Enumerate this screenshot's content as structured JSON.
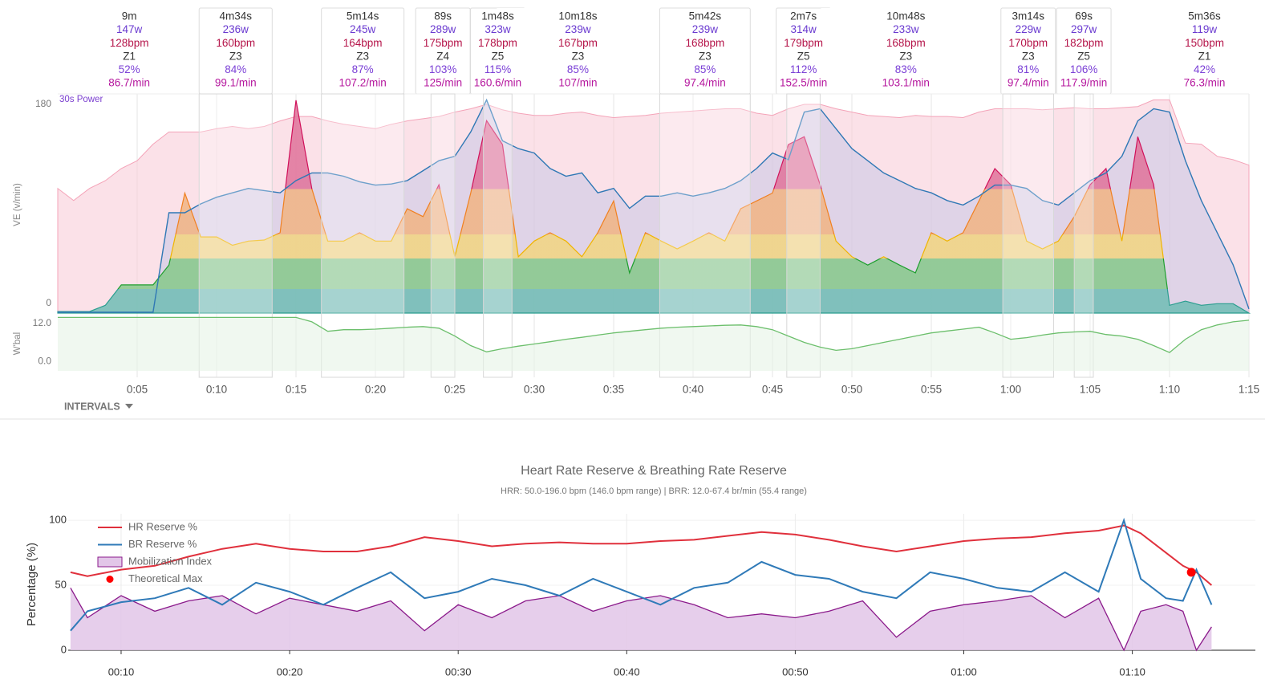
{
  "intervals": [
    {
      "duration": "9m",
      "power": "147w",
      "heart_rate": "128bpm",
      "zone": "Z1",
      "percent": "52%",
      "ve": "86.7/min",
      "start": 0,
      "end": 9,
      "boxed": false
    },
    {
      "duration": "4m34s",
      "power": "236w",
      "heart_rate": "160bpm",
      "zone": "Z3",
      "percent": "84%",
      "ve": "99.1/min",
      "start": 8.9,
      "end": 13.5,
      "boxed": true
    },
    {
      "duration": "5m14s",
      "power": "245w",
      "heart_rate": "164bpm",
      "zone": "Z3",
      "percent": "87%",
      "ve": "107.2/min",
      "start": 16.6,
      "end": 21.8,
      "boxed": true
    },
    {
      "duration": "89s",
      "power": "289w",
      "heart_rate": "175bpm",
      "zone": "Z4",
      "percent": "103%",
      "ve": "125/min",
      "start": 23.5,
      "end": 25.0,
      "boxed": true
    },
    {
      "duration": "1m48s",
      "power": "323w",
      "heart_rate": "178bpm",
      "zone": "Z5",
      "percent": "115%",
      "ve": "160.6/min",
      "start": 26.8,
      "end": 28.6,
      "boxed": true
    },
    {
      "duration": "10m18s",
      "power": "239w",
      "heart_rate": "167bpm",
      "zone": "Z3",
      "percent": "85%",
      "ve": "107/min",
      "start": 27.6,
      "end": 37.9,
      "boxed": false
    },
    {
      "duration": "5m42s",
      "power": "239w",
      "heart_rate": "168bpm",
      "zone": "Z3",
      "percent": "85%",
      "ve": "97.4/min",
      "start": 37.9,
      "end": 43.6,
      "boxed": true
    },
    {
      "duration": "2m7s",
      "power": "314w",
      "heart_rate": "179bpm",
      "zone": "Z5",
      "percent": "112%",
      "ve": "152.5/min",
      "start": 45.9,
      "end": 48.0,
      "boxed": true
    },
    {
      "duration": "10m48s",
      "power": "233w",
      "heart_rate": "168bpm",
      "zone": "Z3",
      "percent": "83%",
      "ve": "103.1/min",
      "start": 48.0,
      "end": 58.8,
      "boxed": false
    },
    {
      "duration": "3m14s",
      "power": "229w",
      "heart_rate": "170bpm",
      "zone": "Z3",
      "percent": "81%",
      "ve": "97.4/min",
      "start": 59.5,
      "end": 62.7,
      "boxed": true
    },
    {
      "duration": "69s",
      "power": "297w",
      "heart_rate": "182bpm",
      "zone": "Z5",
      "percent": "106%",
      "ve": "117.9/min",
      "start": 64.0,
      "end": 65.2,
      "boxed": true
    },
    {
      "duration": "5m36s",
      "power": "119w",
      "heart_rate": "150bpm",
      "zone": "Z1",
      "percent": "42%",
      "ve": "76.3/min",
      "start": 69.4,
      "end": 75.0,
      "boxed": false
    }
  ],
  "intervals_menu": "INTERVALS",
  "chart_data": [
    {
      "type": "area",
      "ylabel": "VE (v/min)",
      "x": [
        0,
        1,
        2,
        3,
        4,
        5,
        6,
        7,
        8,
        9,
        10,
        11,
        12,
        13,
        14,
        15,
        16,
        17,
        18,
        19,
        20,
        21,
        22,
        23,
        24,
        25,
        26,
        27,
        28,
        29,
        30,
        31,
        32,
        33,
        34,
        35,
        36,
        37,
        38,
        39,
        40,
        41,
        42,
        43,
        44,
        45,
        46,
        47,
        48,
        49,
        50,
        51,
        52,
        53,
        54,
        55,
        56,
        57,
        58,
        59,
        60,
        61,
        62,
        63,
        64,
        65,
        66,
        67,
        68,
        69,
        70,
        71,
        72,
        73,
        74,
        75
      ],
      "xlim": [
        0,
        75
      ],
      "xticks": [
        {
          "value": 5,
          "label": "0:05"
        },
        {
          "value": 10,
          "label": "0:10"
        },
        {
          "value": 15,
          "label": "0:15"
        },
        {
          "value": 20,
          "label": "0:20"
        },
        {
          "value": 25,
          "label": "0:25"
        },
        {
          "value": 30,
          "label": "0:30"
        },
        {
          "value": 35,
          "label": "0:35"
        },
        {
          "value": 40,
          "label": "0:40"
        },
        {
          "value": 45,
          "label": "0:45"
        },
        {
          "value": 50,
          "label": "0:50"
        },
        {
          "value": 55,
          "label": "0:55"
        },
        {
          "value": 60,
          "label": "1:00"
        },
        {
          "value": 65,
          "label": "1:05"
        },
        {
          "value": 70,
          "label": "1:10"
        },
        {
          "value": 75,
          "label": "1:15"
        }
      ],
      "ylim": [
        -8.7,
        189.4
      ],
      "yticks": [
        0,
        180
      ],
      "y2lim": [
        0,
        420
      ],
      "grid": true,
      "series": [
        {
          "color": "#f4a3b8",
          "fill": "#f7c9d6",
          "values": [
            104,
            93,
            104,
            111,
            122,
            129,
            144,
            155,
            155,
            155,
            158,
            160,
            158,
            160,
            165,
            169,
            169,
            165,
            162,
            160,
            158,
            162,
            165,
            167,
            169,
            173,
            176,
            180,
            175,
            172,
            170,
            170,
            172,
            173,
            170,
            168,
            169,
            170,
            172,
            173,
            174,
            175,
            176,
            176,
            172,
            170,
            176,
            180,
            180,
            176,
            173,
            170,
            169,
            168,
            170,
            169,
            169,
            168,
            173,
            176,
            176,
            176,
            175,
            176,
            177,
            176,
            176,
            177,
            178,
            184,
            184,
            145,
            144,
            133,
            130,
            125
          ]
        },
        {
          "color": "#2f78b5",
          "fill": "#c9c9e6",
          "values": [
            -8,
            -8,
            -8,
            -8,
            -8,
            -8,
            -8,
            82,
            82,
            90,
            96,
            100,
            104,
            102,
            100,
            111,
            118,
            118,
            115,
            110,
            107,
            108,
            111,
            120,
            129,
            133,
            155,
            184,
            147,
            140,
            136,
            122,
            115,
            118,
            100,
            104,
            86,
            97,
            97,
            100,
            97,
            100,
            104,
            111,
            122,
            136,
            130,
            173,
            176,
            158,
            140,
            129,
            118,
            111,
            104,
            100,
            93,
            89,
            97,
            107,
            107,
            104,
            93,
            89,
            100,
            111,
            118,
            133,
            165,
            176,
            173,
            129,
            93,
            64,
            35,
            -5
          ]
        },
        {
          "name": "30s Power",
          "axis": "y2",
          "color": "#7b3fd0",
          "zone_bounds": [
            46,
            105,
            151,
            238
          ],
          "zone_colors": [
            "#6fbdb4",
            "#86c98a",
            "#f2d580",
            "#f1b483",
            "#e0739a"
          ],
          "zone_lines": [
            "#2a9d8f",
            "#1e9e2e",
            "#f0b400",
            "#f08020",
            "#d0105a"
          ],
          "values": [
            3,
            3,
            3,
            15,
            54,
            54,
            54,
            92,
            230,
            146,
            146,
            130,
            138,
            140,
            154,
            408,
            238,
            138,
            138,
            154,
            138,
            138,
            200,
            185,
            246,
            108,
            230,
            369,
            323,
            108,
            138,
            154,
            138,
            108,
            154,
            215,
            77,
            154,
            138,
            123,
            138,
            154,
            138,
            200,
            215,
            230,
            323,
            338,
            246,
            138,
            108,
            92,
            108,
            92,
            77,
            154,
            138,
            154,
            215,
            277,
            246,
            138,
            123,
            138,
            185,
            246,
            277,
            138,
            338,
            246,
            15,
            23,
            15,
            18,
            18,
            0
          ]
        }
      ]
    },
    {
      "type": "line",
      "ylabel": "W'bal",
      "x": [
        0,
        1,
        2,
        3,
        4,
        5,
        6,
        7,
        8,
        9,
        10,
        11,
        12,
        13,
        14,
        15,
        16,
        17,
        18,
        19,
        20,
        21,
        22,
        23,
        24,
        25,
        26,
        27,
        28,
        29,
        30,
        31,
        32,
        33,
        34,
        35,
        36,
        37,
        38,
        39,
        40,
        41,
        42,
        43,
        44,
        45,
        46,
        47,
        48,
        49,
        50,
        51,
        52,
        53,
        54,
        55,
        56,
        57,
        58,
        59,
        60,
        61,
        62,
        63,
        64,
        65,
        66,
        67,
        68,
        69,
        70,
        71,
        72,
        73,
        74,
        75
      ],
      "xlim": [
        0,
        75
      ],
      "ylim": [
        -3,
        14.5
      ],
      "yticks": [
        {
          "value": 12,
          "label": "12.0"
        },
        {
          "value": 0,
          "label": "0.0"
        }
      ],
      "series": [
        {
          "color": "#6cbf6c",
          "fill": "#e6f3e6",
          "values": [
            13.9,
            13.9,
            13.9,
            13.9,
            13.9,
            13.9,
            13.9,
            13.9,
            13.9,
            13.9,
            13.9,
            13.9,
            13.9,
            13.9,
            13.9,
            13.9,
            12.5,
            9.5,
            10,
            10,
            10.2,
            10.5,
            10.8,
            11,
            10.5,
            8,
            5,
            3,
            4,
            4.8,
            5.5,
            6.2,
            7,
            7.6,
            8.3,
            9,
            9.5,
            10,
            10.5,
            10.8,
            11,
            11.2,
            11.4,
            11.5,
            11,
            10,
            8,
            6,
            4.5,
            3.5,
            4,
            5,
            6,
            7,
            8,
            9,
            9.6,
            10.2,
            10.8,
            9,
            7,
            7.5,
            8.3,
            9,
            9.3,
            9.5,
            8.5,
            8,
            7,
            5,
            2.8,
            7,
            10,
            11.5,
            12.5,
            13
          ]
        }
      ]
    },
    {
      "type": "line",
      "title": "Heart Rate Reserve & Breathing Rate Reserve",
      "subtitle": "HRR: 50.0-196.0 bpm (146.0 bpm range) | BRR: 12.0-67.4 br/min (55.4 range)",
      "ylabel": "Percentage (%)",
      "x": [
        7,
        8,
        10,
        12,
        14,
        16,
        18,
        20,
        22,
        24,
        26,
        28,
        30,
        32,
        34,
        36,
        38,
        40,
        42,
        44,
        46,
        48,
        50,
        52,
        54,
        56,
        58,
        60,
        62,
        64,
        66,
        68,
        69.5,
        70.5,
        72,
        73,
        73.8,
        74.7
      ],
      "xlim": [
        6.86,
        77.3
      ],
      "xticks": [
        {
          "value": 10,
          "label": "00:10"
        },
        {
          "value": 20,
          "label": "00:20"
        },
        {
          "value": 30,
          "label": "00:30"
        },
        {
          "value": 40,
          "label": "00:40"
        },
        {
          "value": 50,
          "label": "00:50"
        },
        {
          "value": 60,
          "label": "01:00"
        },
        {
          "value": 70,
          "label": "01:10"
        }
      ],
      "ylim": [
        0,
        105
      ],
      "yticks": [
        0,
        50,
        100
      ],
      "grid": true,
      "legend": "upper left",
      "series": [
        {
          "name": "HR Reserve %",
          "color": "#e0303c",
          "values": [
            60,
            57,
            62,
            65,
            72,
            78,
            82,
            78,
            76,
            76,
            80,
            87,
            84,
            80,
            82,
            83,
            82,
            82,
            84,
            85,
            88,
            91,
            89,
            85,
            80,
            76,
            80,
            84,
            86,
            87,
            90,
            92,
            96,
            90,
            75,
            65,
            60,
            50
          ]
        },
        {
          "name": "BR Reserve %",
          "color": "#2f7ab8",
          "values": [
            15,
            30,
            37,
            40,
            48,
            35,
            52,
            45,
            35,
            48,
            60,
            40,
            45,
            55,
            50,
            42,
            55,
            45,
            35,
            48,
            52,
            68,
            58,
            55,
            45,
            40,
            60,
            55,
            48,
            45,
            60,
            45,
            100,
            55,
            40,
            38,
            62,
            35
          ]
        },
        {
          "name": "Mobilization Index",
          "color": "#8b1a8b",
          "fill": "#e2c6e8",
          "values": [
            48,
            25,
            42,
            30,
            38,
            42,
            28,
            40,
            35,
            30,
            38,
            15,
            35,
            25,
            38,
            42,
            30,
            38,
            42,
            35,
            25,
            28,
            25,
            30,
            38,
            10,
            30,
            35,
            38,
            42,
            25,
            40,
            0,
            30,
            35,
            30,
            0,
            18
          ]
        },
        {
          "name": "Theoretical Max",
          "color": "#ff0000",
          "marker": "dot",
          "x": [
            73.5
          ],
          "values": [
            60
          ]
        }
      ]
    }
  ]
}
